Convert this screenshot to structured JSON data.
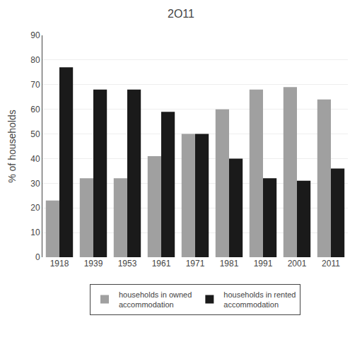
{
  "chart_data": {
    "type": "bar",
    "title": "2O11",
    "categories": [
      "1918",
      "1939",
      "1953",
      "1961",
      "1971",
      "1981",
      "1991",
      "2001",
      "2011"
    ],
    "series": [
      {
        "name": "households in owned\naccommodation",
        "color": "#a0a0a0",
        "values": [
          23,
          32,
          32,
          41,
          50,
          60,
          68,
          69,
          64
        ]
      },
      {
        "name": "households in rented\naccommodation",
        "color": "#1a1a1a",
        "values": [
          77,
          68,
          68,
          59,
          50,
          40,
          32,
          31,
          36
        ]
      }
    ],
    "ylabel": "% of households",
    "ylim": [
      0,
      90
    ],
    "yticks": [
      0,
      10,
      20,
      30,
      40,
      50,
      60,
      70,
      80,
      90
    ],
    "grid": true,
    "legend": "bottom"
  }
}
